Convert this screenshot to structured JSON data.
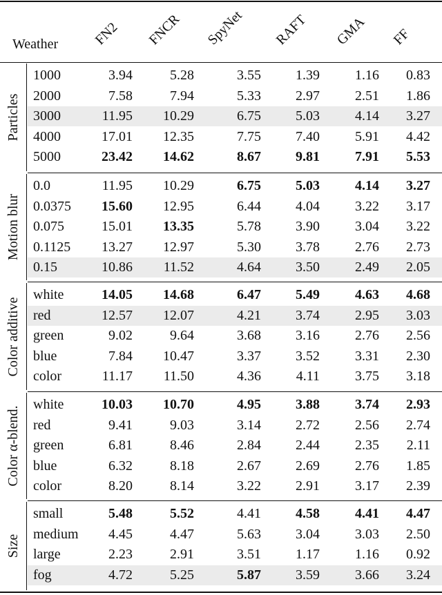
{
  "header": {
    "weather": "Weather",
    "columns": [
      "FN2",
      "FNCR",
      "SpyNet",
      "RAFT",
      "GMA",
      "FF"
    ]
  },
  "groups": [
    {
      "label": "Particles",
      "rows": [
        {
          "name": "1000",
          "values": [
            "3.94",
            "5.28",
            "3.55",
            "1.39",
            "1.16",
            "0.83"
          ],
          "bold": [
            false,
            false,
            false,
            false,
            false,
            false
          ],
          "shaded": false
        },
        {
          "name": "2000",
          "values": [
            "7.58",
            "7.94",
            "5.33",
            "2.97",
            "2.51",
            "1.86"
          ],
          "bold": [
            false,
            false,
            false,
            false,
            false,
            false
          ],
          "shaded": false
        },
        {
          "name": "3000",
          "values": [
            "11.95",
            "10.29",
            "6.75",
            "5.03",
            "4.14",
            "3.27"
          ],
          "bold": [
            false,
            false,
            false,
            false,
            false,
            false
          ],
          "shaded": true
        },
        {
          "name": "4000",
          "values": [
            "17.01",
            "12.35",
            "7.75",
            "7.40",
            "5.91",
            "4.42"
          ],
          "bold": [
            false,
            false,
            false,
            false,
            false,
            false
          ],
          "shaded": false
        },
        {
          "name": "5000",
          "values": [
            "23.42",
            "14.62",
            "8.67",
            "9.81",
            "7.91",
            "5.53"
          ],
          "bold": [
            true,
            true,
            true,
            true,
            true,
            true
          ],
          "shaded": false
        }
      ]
    },
    {
      "label": "Motion blur",
      "rows": [
        {
          "name": "0.0",
          "values": [
            "11.95",
            "10.29",
            "6.75",
            "5.03",
            "4.14",
            "3.27"
          ],
          "bold": [
            false,
            false,
            true,
            true,
            true,
            true
          ],
          "shaded": false
        },
        {
          "name": "0.0375",
          "values": [
            "15.60",
            "12.95",
            "6.44",
            "4.04",
            "3.22",
            "3.17"
          ],
          "bold": [
            true,
            false,
            false,
            false,
            false,
            false
          ],
          "shaded": false
        },
        {
          "name": "0.075",
          "values": [
            "15.01",
            "13.35",
            "5.78",
            "3.90",
            "3.04",
            "3.22"
          ],
          "bold": [
            false,
            true,
            false,
            false,
            false,
            false
          ],
          "shaded": false
        },
        {
          "name": "0.1125",
          "values": [
            "13.27",
            "12.97",
            "5.30",
            "3.78",
            "2.76",
            "2.73"
          ],
          "bold": [
            false,
            false,
            false,
            false,
            false,
            false
          ],
          "shaded": false
        },
        {
          "name": "0.15",
          "values": [
            "10.86",
            "11.52",
            "4.64",
            "3.50",
            "2.49",
            "2.05"
          ],
          "bold": [
            false,
            false,
            false,
            false,
            false,
            false
          ],
          "shaded": true
        }
      ]
    },
    {
      "label": "Color additive",
      "rows": [
        {
          "name": "white",
          "values": [
            "14.05",
            "14.68",
            "6.47",
            "5.49",
            "4.63",
            "4.68"
          ],
          "bold": [
            true,
            true,
            true,
            true,
            true,
            true
          ],
          "shaded": false
        },
        {
          "name": "red",
          "values": [
            "12.57",
            "12.07",
            "4.21",
            "3.74",
            "2.95",
            "3.03"
          ],
          "bold": [
            false,
            false,
            false,
            false,
            false,
            false
          ],
          "shaded": true
        },
        {
          "name": "green",
          "values": [
            "9.02",
            "9.64",
            "3.68",
            "3.16",
            "2.76",
            "2.56"
          ],
          "bold": [
            false,
            false,
            false,
            false,
            false,
            false
          ],
          "shaded": false
        },
        {
          "name": "blue",
          "values": [
            "7.84",
            "10.47",
            "3.37",
            "3.52",
            "3.31",
            "2.30"
          ],
          "bold": [
            false,
            false,
            false,
            false,
            false,
            false
          ],
          "shaded": false
        },
        {
          "name": "color",
          "values": [
            "11.17",
            "11.50",
            "4.36",
            "4.11",
            "3.75",
            "3.18"
          ],
          "bold": [
            false,
            false,
            false,
            false,
            false,
            false
          ],
          "shaded": false
        }
      ]
    },
    {
      "label": "Color α-blend.",
      "rows": [
        {
          "name": "white",
          "values": [
            "10.03",
            "10.70",
            "4.95",
            "3.88",
            "3.74",
            "2.93"
          ],
          "bold": [
            true,
            true,
            true,
            true,
            true,
            true
          ],
          "shaded": false
        },
        {
          "name": "red",
          "values": [
            "9.41",
            "9.03",
            "3.14",
            "2.72",
            "2.56",
            "2.74"
          ],
          "bold": [
            false,
            false,
            false,
            false,
            false,
            false
          ],
          "shaded": false
        },
        {
          "name": "green",
          "values": [
            "6.81",
            "8.46",
            "2.84",
            "2.44",
            "2.35",
            "2.11"
          ],
          "bold": [
            false,
            false,
            false,
            false,
            false,
            false
          ],
          "shaded": false
        },
        {
          "name": "blue",
          "values": [
            "6.32",
            "8.18",
            "2.67",
            "2.69",
            "2.76",
            "1.85"
          ],
          "bold": [
            false,
            false,
            false,
            false,
            false,
            false
          ],
          "shaded": false
        },
        {
          "name": "color",
          "values": [
            "8.20",
            "8.14",
            "3.22",
            "2.91",
            "3.17",
            "2.39"
          ],
          "bold": [
            false,
            false,
            false,
            false,
            false,
            false
          ],
          "shaded": false
        }
      ]
    },
    {
      "label": "Size",
      "rows": [
        {
          "name": "small",
          "values": [
            "5.48",
            "5.52",
            "4.41",
            "4.58",
            "4.41",
            "4.47"
          ],
          "bold": [
            true,
            true,
            false,
            true,
            true,
            true
          ],
          "shaded": false
        },
        {
          "name": "medium",
          "values": [
            "4.45",
            "4.47",
            "5.63",
            "3.04",
            "3.03",
            "2.50"
          ],
          "bold": [
            false,
            false,
            false,
            false,
            false,
            false
          ],
          "shaded": false
        },
        {
          "name": "large",
          "values": [
            "2.23",
            "2.91",
            "3.51",
            "1.17",
            "1.16",
            "0.92"
          ],
          "bold": [
            false,
            false,
            false,
            false,
            false,
            false
          ],
          "shaded": false
        },
        {
          "name": "fog",
          "values": [
            "4.72",
            "5.25",
            "5.87",
            "3.59",
            "3.66",
            "3.24"
          ],
          "bold": [
            false,
            false,
            true,
            false,
            false,
            false
          ],
          "shaded": true
        }
      ]
    }
  ]
}
